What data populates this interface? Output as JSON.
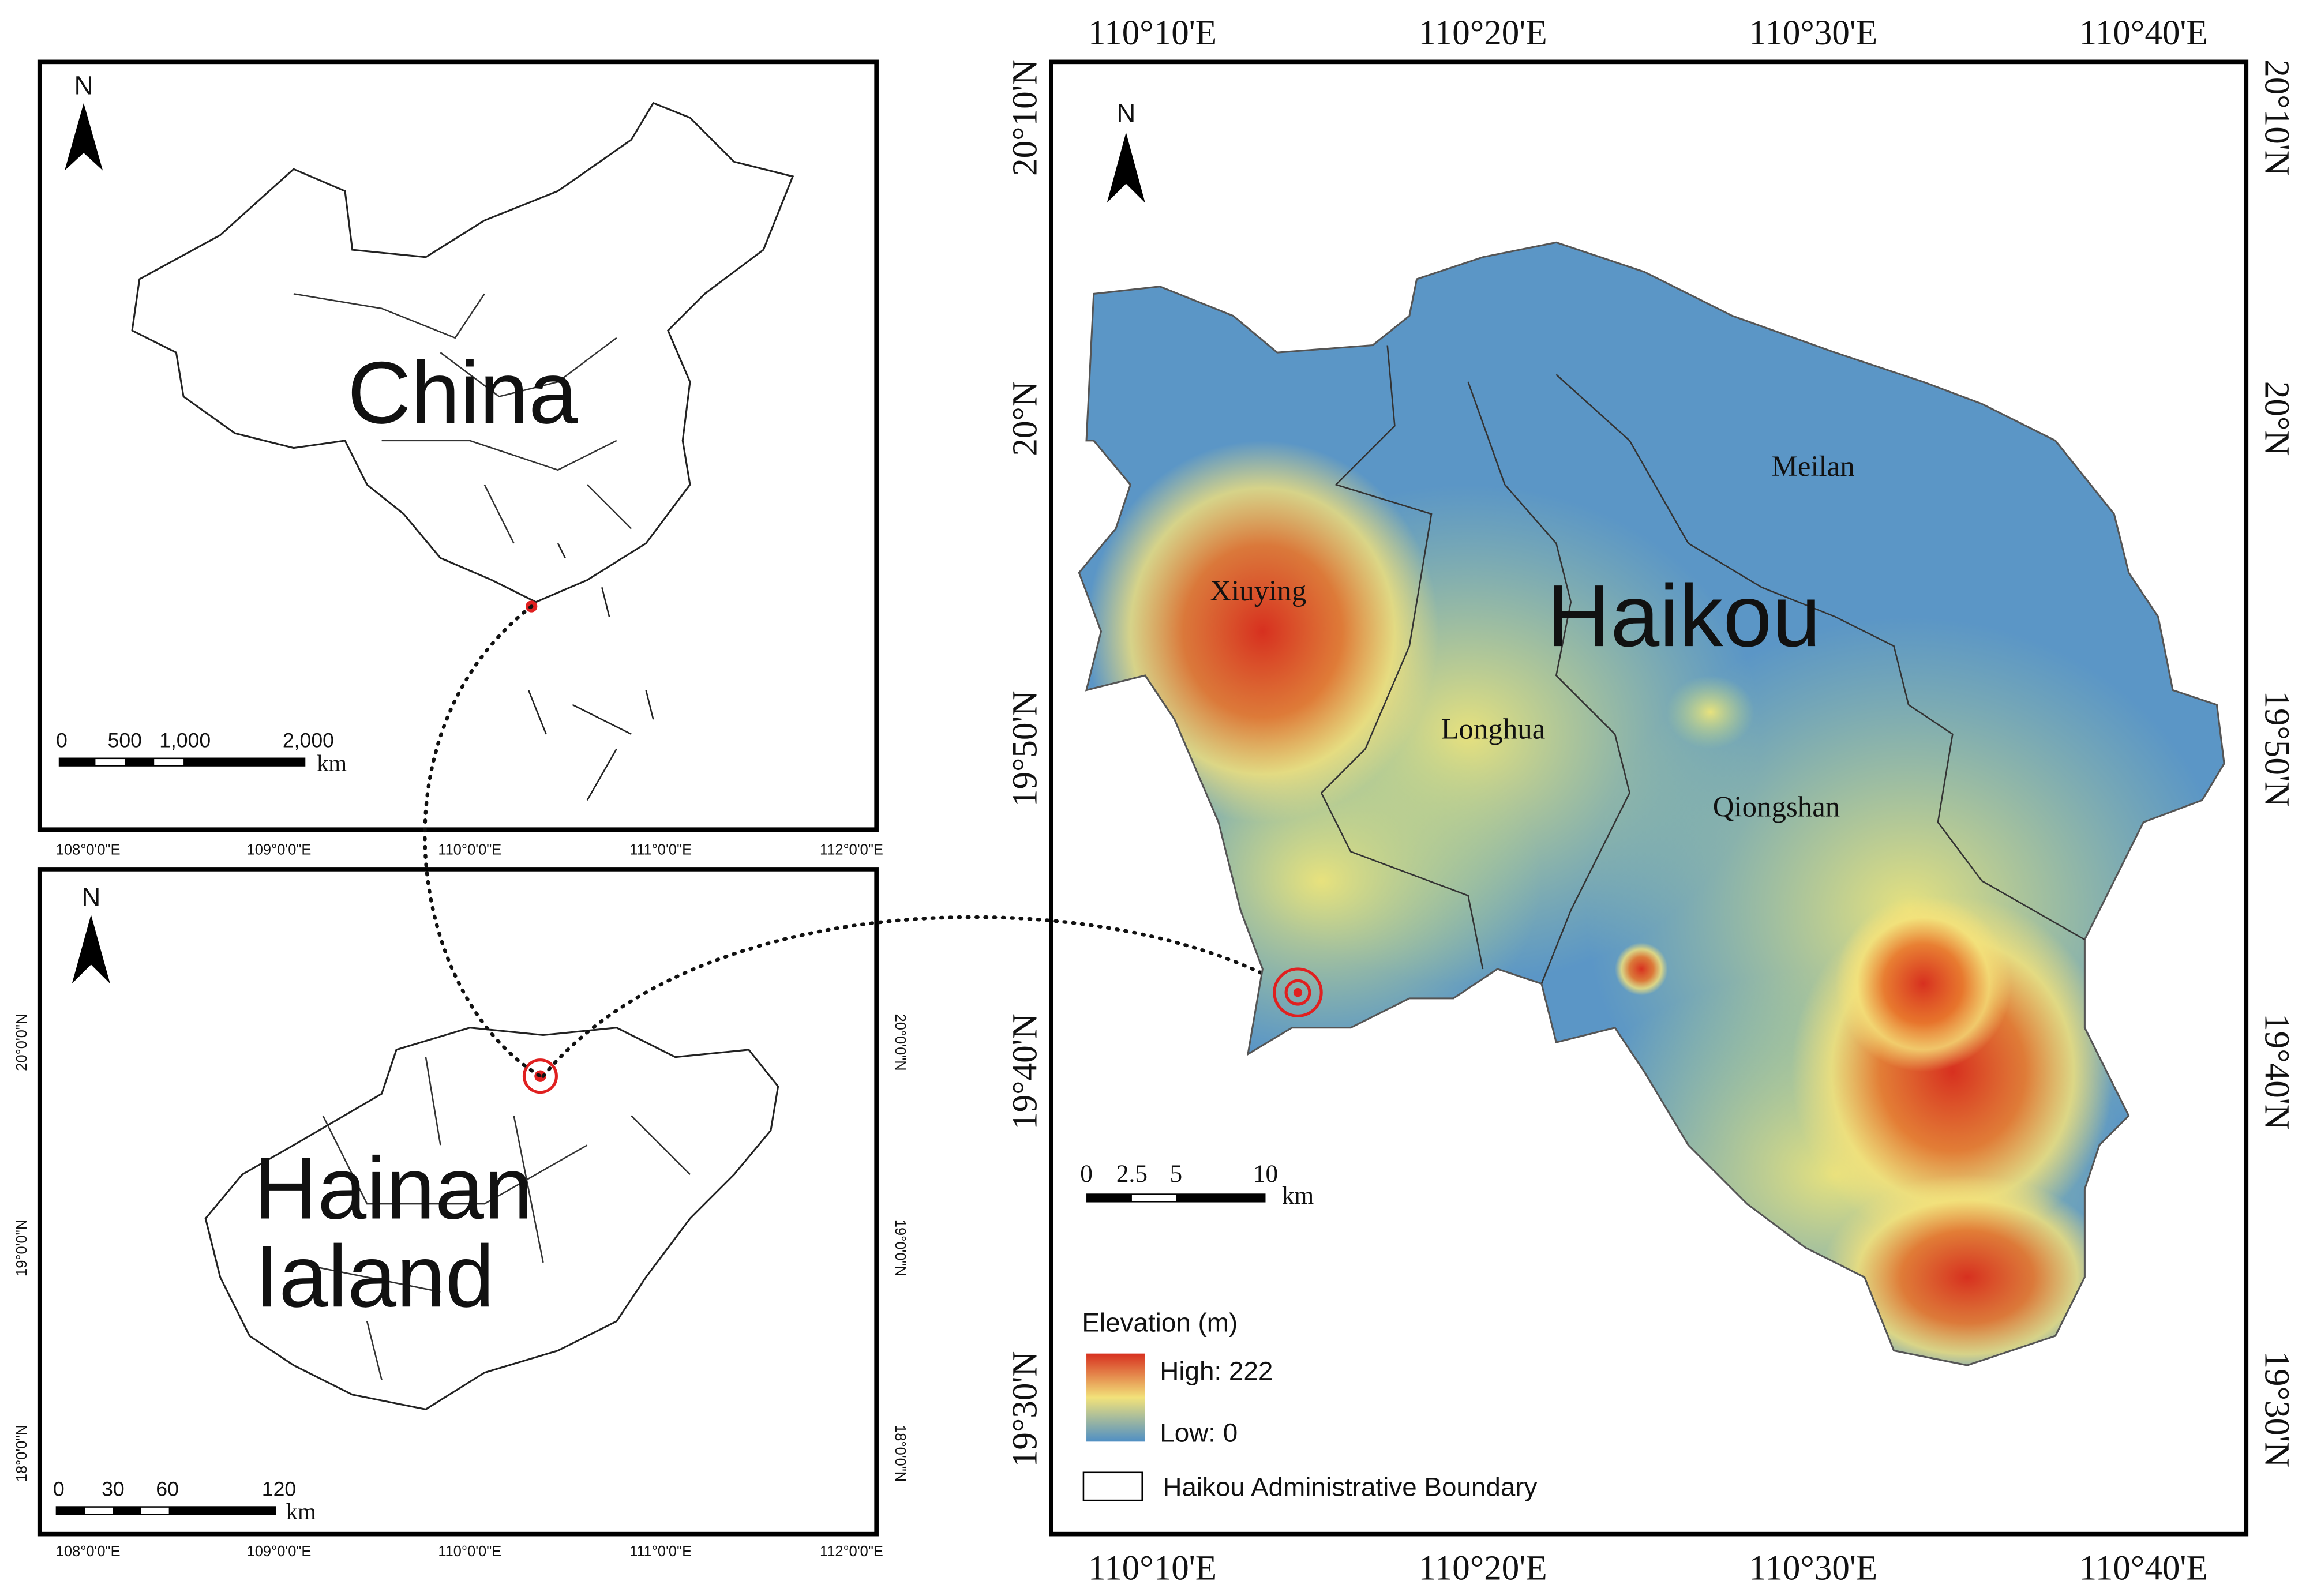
{
  "china_panel": {
    "north": "N",
    "title": "China",
    "scale": {
      "labels": [
        "0",
        "500",
        "1,000",
        "2,000"
      ],
      "unit": "km"
    }
  },
  "mid_axis": {
    "lon_labels": [
      "108°0'0\"E",
      "109°0'0\"E",
      "110°0'0\"E",
      "111°0'0\"E",
      "112°0'0\"E"
    ]
  },
  "hainan_panel": {
    "north": "N",
    "title_lines": [
      "Hainan",
      "Ialand"
    ],
    "scale": {
      "labels": [
        "0",
        "30",
        "60",
        "120"
      ],
      "unit": "km"
    },
    "lon_labels": [
      "108°0'0\"E",
      "109°0'0\"E",
      "110°0'0\"E",
      "111°0'0\"E",
      "112°0'0\"E"
    ],
    "lat_labels": [
      "20°0'0\"N",
      "19°0'0\"N",
      "18°0'0\"N"
    ]
  },
  "haikou_panel": {
    "north": "N",
    "title": "Haikou",
    "districts": [
      "Meilan",
      "Xiuying",
      "Longhua",
      "Qiongshan"
    ],
    "lon_labels": [
      "110°10'E",
      "110°20'E",
      "110°30'E",
      "110°40'E"
    ],
    "lat_labels": [
      "20°10'N",
      "20°N",
      "19°50'N",
      "19°40'N",
      "19°30'N"
    ],
    "scale": {
      "labels": [
        "0",
        "2.5",
        "5",
        "10"
      ],
      "unit": "km"
    },
    "legend": {
      "title": "Elevation (m)",
      "high": "High: 222",
      "low": "Low: 0",
      "boundary": "Haikou Administrative Boundary"
    }
  }
}
